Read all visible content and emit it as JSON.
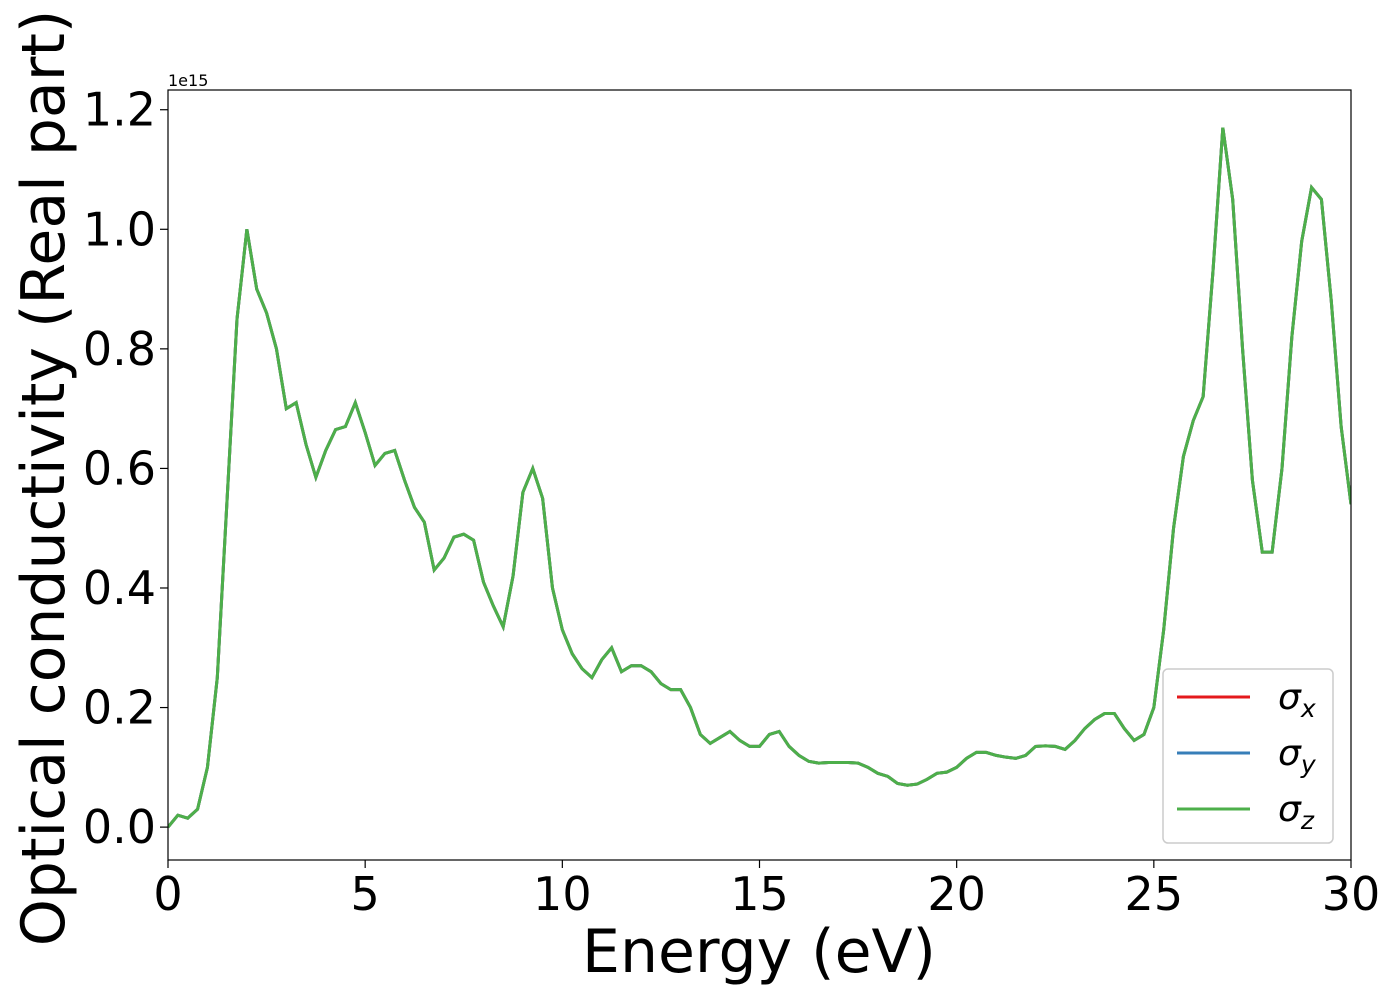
{
  "chart_data": {
    "type": "line",
    "xlabel": "Energy (eV)",
    "ylabel": "Optical conductivity (Real part)",
    "y_offset_text": "1e15",
    "xlim": [
      0,
      30
    ],
    "xticks": [
      0,
      5,
      10,
      15,
      20,
      25,
      30
    ],
    "ylim": [
      -0.055,
      1.233
    ],
    "yticks": [
      {
        "value": 0,
        "label": "0.0"
      },
      0.2,
      0.4,
      0.6,
      0.8,
      {
        "value": 1,
        "label": "1.0"
      },
      1.2
    ],
    "legend": "lower right",
    "grid": false,
    "x": [
      0,
      0.25,
      0.5,
      0.75,
      1,
      1.25,
      1.5,
      1.75,
      2,
      2.25,
      2.5,
      2.75,
      3,
      3.25,
      3.5,
      3.75,
      4,
      4.25,
      4.5,
      4.75,
      5,
      5.25,
      5.5,
      5.75,
      6,
      6.25,
      6.5,
      6.75,
      7,
      7.25,
      7.5,
      7.75,
      8,
      8.25,
      8.5,
      8.75,
      9,
      9.25,
      9.5,
      9.75,
      10,
      10.25,
      10.5,
      10.75,
      11,
      11.25,
      11.5,
      11.75,
      12,
      12.25,
      12.5,
      12.75,
      13,
      13.25,
      13.5,
      13.75,
      14,
      14.25,
      14.5,
      14.75,
      15,
      15.25,
      15.5,
      15.75,
      16,
      16.25,
      16.5,
      16.75,
      17,
      17.25,
      17.5,
      17.75,
      18,
      18.25,
      18.5,
      18.75,
      19,
      19.25,
      19.5,
      19.75,
      20,
      20.25,
      20.5,
      20.75,
      21,
      21.25,
      21.5,
      21.75,
      22,
      22.25,
      22.5,
      22.75,
      23,
      23.25,
      23.5,
      23.75,
      24,
      24.25,
      24.5,
      24.75,
      25,
      25.25,
      25.5,
      25.75,
      26,
      26.25,
      26.5,
      26.75,
      27,
      27.25,
      27.5,
      27.75,
      28,
      28.25,
      28.5,
      28.75,
      29,
      29.25,
      29.5,
      29.75,
      30
    ],
    "series": [
      {
        "name": "σx",
        "color": "#e41a1c",
        "values": [
          0,
          0.02,
          0.015,
          0.03,
          0.1,
          0.25,
          0.55,
          0.85,
          1.0,
          0.9,
          0.86,
          0.8,
          0.7,
          0.71,
          0.64,
          0.585,
          0.63,
          0.665,
          0.67,
          0.71,
          0.66,
          0.605,
          0.625,
          0.63,
          0.58,
          0.535,
          0.51,
          0.43,
          0.45,
          0.485,
          0.49,
          0.48,
          0.41,
          0.37,
          0.335,
          0.42,
          0.56,
          0.6,
          0.55,
          0.4,
          0.33,
          0.29,
          0.265,
          0.25,
          0.28,
          0.3,
          0.26,
          0.27,
          0.27,
          0.26,
          0.24,
          0.23,
          0.23,
          0.2,
          0.155,
          0.14,
          0.15,
          0.16,
          0.145,
          0.135,
          0.135,
          0.155,
          0.16,
          0.135,
          0.12,
          0.11,
          0.107,
          0.108,
          0.108,
          0.108,
          0.107,
          0.1,
          0.09,
          0.085,
          0.073,
          0.07,
          0.072,
          0.08,
          0.09,
          0.092,
          0.1,
          0.115,
          0.125,
          0.125,
          0.12,
          0.117,
          0.115,
          0.12,
          0.135,
          0.136,
          0.135,
          0.13,
          0.145,
          0.165,
          0.18,
          0.19,
          0.19,
          0.165,
          0.145,
          0.155,
          0.2,
          0.33,
          0.5,
          0.62,
          0.68,
          0.72,
          0.93,
          1.17,
          1.05,
          0.8,
          0.58,
          0.46,
          0.46,
          0.6,
          0.82,
          0.98,
          1.07,
          1.05,
          0.88,
          0.67,
          0.54
        ]
      },
      {
        "name": "σy",
        "color": "#377eb8",
        "values": [
          0,
          0.02,
          0.015,
          0.03,
          0.1,
          0.25,
          0.55,
          0.85,
          1.0,
          0.9,
          0.86,
          0.8,
          0.7,
          0.71,
          0.64,
          0.585,
          0.63,
          0.665,
          0.67,
          0.71,
          0.66,
          0.605,
          0.625,
          0.63,
          0.58,
          0.535,
          0.51,
          0.43,
          0.45,
          0.485,
          0.49,
          0.48,
          0.41,
          0.37,
          0.335,
          0.42,
          0.56,
          0.6,
          0.55,
          0.4,
          0.33,
          0.29,
          0.265,
          0.25,
          0.28,
          0.3,
          0.26,
          0.27,
          0.27,
          0.26,
          0.24,
          0.23,
          0.23,
          0.2,
          0.155,
          0.14,
          0.15,
          0.16,
          0.145,
          0.135,
          0.135,
          0.155,
          0.16,
          0.135,
          0.12,
          0.11,
          0.107,
          0.108,
          0.108,
          0.108,
          0.107,
          0.1,
          0.09,
          0.085,
          0.073,
          0.07,
          0.072,
          0.08,
          0.09,
          0.092,
          0.1,
          0.115,
          0.125,
          0.125,
          0.12,
          0.117,
          0.115,
          0.12,
          0.135,
          0.136,
          0.135,
          0.13,
          0.145,
          0.165,
          0.18,
          0.19,
          0.19,
          0.165,
          0.145,
          0.155,
          0.2,
          0.33,
          0.5,
          0.62,
          0.68,
          0.72,
          0.93,
          1.17,
          1.05,
          0.8,
          0.58,
          0.46,
          0.46,
          0.6,
          0.82,
          0.98,
          1.07,
          1.05,
          0.88,
          0.67,
          0.54
        ]
      },
      {
        "name": "σz",
        "color": "#4daf4a",
        "values": [
          0,
          0.02,
          0.015,
          0.03,
          0.1,
          0.25,
          0.55,
          0.85,
          1.0,
          0.9,
          0.86,
          0.8,
          0.7,
          0.71,
          0.64,
          0.585,
          0.63,
          0.665,
          0.67,
          0.71,
          0.66,
          0.605,
          0.625,
          0.63,
          0.58,
          0.535,
          0.51,
          0.43,
          0.45,
          0.485,
          0.49,
          0.48,
          0.41,
          0.37,
          0.335,
          0.42,
          0.56,
          0.6,
          0.55,
          0.4,
          0.33,
          0.29,
          0.265,
          0.25,
          0.28,
          0.3,
          0.26,
          0.27,
          0.27,
          0.26,
          0.24,
          0.23,
          0.23,
          0.2,
          0.155,
          0.14,
          0.15,
          0.16,
          0.145,
          0.135,
          0.135,
          0.155,
          0.16,
          0.135,
          0.12,
          0.11,
          0.107,
          0.108,
          0.108,
          0.108,
          0.107,
          0.1,
          0.09,
          0.085,
          0.073,
          0.07,
          0.072,
          0.08,
          0.09,
          0.092,
          0.1,
          0.115,
          0.125,
          0.125,
          0.12,
          0.117,
          0.115,
          0.12,
          0.135,
          0.136,
          0.135,
          0.13,
          0.145,
          0.165,
          0.18,
          0.19,
          0.19,
          0.165,
          0.145,
          0.155,
          0.2,
          0.33,
          0.5,
          0.62,
          0.68,
          0.72,
          0.93,
          1.17,
          1.05,
          0.8,
          0.58,
          0.46,
          0.46,
          0.6,
          0.82,
          0.98,
          1.07,
          1.05,
          0.88,
          0.67,
          0.54
        ]
      }
    ]
  }
}
